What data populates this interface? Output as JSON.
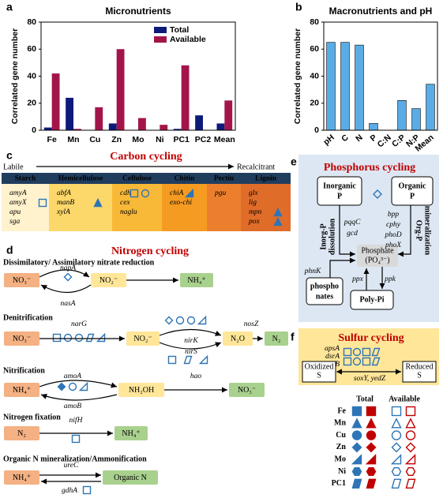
{
  "chart_data": [
    {
      "type": "bar",
      "panel": "a",
      "title": "Micronutrients",
      "ylabel": "Correlated gene number",
      "categories": [
        "Fe",
        "Mn",
        "Cu",
        "Zn",
        "Mo",
        "Ni",
        "PC1",
        "PC2",
        "Mean"
      ],
      "series": [
        {
          "name": "Total",
          "color": "#0d1a7a",
          "values": [
            2,
            24,
            0,
            5,
            0,
            0,
            1,
            11,
            5
          ]
        },
        {
          "name": "Available",
          "color": "#a3154a",
          "values": [
            42,
            1,
            17,
            60,
            9,
            4,
            48,
            0,
            22
          ]
        }
      ],
      "ylim": [
        0,
        80
      ],
      "yticks": [
        0,
        20,
        40,
        60,
        80
      ],
      "legend": "upper center"
    },
    {
      "type": "bar",
      "panel": "b",
      "title": "Macronutrients and pH",
      "ylabel": "Correlated gene number",
      "categories": [
        "pH",
        "C",
        "N",
        "P",
        "C:N",
        "C:P",
        "N:P",
        "Mean"
      ],
      "values": [
        65,
        65,
        63,
        5,
        0,
        22,
        16,
        34
      ],
      "color": "#5aace6",
      "ylim": [
        0,
        80
      ],
      "yticks": [
        0,
        20,
        40,
        60,
        80
      ]
    }
  ],
  "carbon": {
    "panel": "c",
    "title": "Carbon cycling",
    "labile": "Labile",
    "recalcitrant": "Recalcitrant",
    "columns": [
      {
        "name": "Starch",
        "genes": [
          "amyA",
          "amyX",
          "apu",
          "sga"
        ]
      },
      {
        "name": "Hemicellulose",
        "genes": [
          "abfA",
          "manB",
          "xylA"
        ]
      },
      {
        "name": "Cellulose",
        "genes": [
          "cdh",
          "cex",
          "naglu"
        ]
      },
      {
        "name": "Chitin",
        "genes": [
          "chiA",
          "exo-chi"
        ]
      },
      {
        "name": "Pectin",
        "genes": [
          "pgu"
        ]
      },
      {
        "name": "Lignin",
        "genes": [
          "glx",
          "lig",
          "mpn",
          "pox"
        ]
      }
    ]
  },
  "nitrogen": {
    "panel": "d",
    "title": "Nitrogen cycling",
    "processes": [
      {
        "name": "Dissimilatory/ Assimilatory nitrate reduction",
        "compounds": [
          "NO₃⁻",
          "NO₂⁻",
          "NH₄⁺"
        ],
        "genes": [
          "napA",
          "nasA"
        ]
      },
      {
        "name": "Denitrification",
        "compounds": [
          "NO₃⁻",
          "NO₂⁻",
          "N₂O",
          "N₂"
        ],
        "genes": [
          "narG",
          "nirK",
          "nirS",
          "nosZ"
        ]
      },
      {
        "name": "Nitrification",
        "compounds": [
          "NH₄⁺",
          "NH₂OH",
          "NO₃⁻"
        ],
        "genes": [
          "amoA",
          "amoB",
          "hao"
        ]
      },
      {
        "name": "Nitrogen fixation",
        "compounds": [
          "N₂",
          "NH₄⁺"
        ],
        "genes": [
          "nifH"
        ]
      },
      {
        "name": "Organic N mineralization/Ammonification",
        "compounds": [
          "NH₄⁺",
          "Organic N"
        ],
        "genes": [
          "ureC",
          "gdhA"
        ]
      }
    ]
  },
  "phosphorus": {
    "panel": "e",
    "title": "Phosphorus cycling",
    "inorganic": [
      "Inorganic",
      "P"
    ],
    "organic": [
      "Organic",
      "P"
    ],
    "inorg_process": [
      "Inorg-P",
      "dissolution"
    ],
    "org_process": [
      "Org-P",
      "mineralization"
    ],
    "phosphate": [
      "Phosphate",
      "(PO₄³⁻)"
    ],
    "phosphonates": [
      "phospho",
      "nates"
    ],
    "polyp": "Poly-Pi",
    "genes": [
      "pqqC",
      "gcd",
      "bpp",
      "cphy",
      "phoD",
      "phoX",
      "phnK",
      "ppx",
      "ppk"
    ]
  },
  "sulfur": {
    "panel": "f",
    "title": "Sulfur cycling",
    "genes": [
      "apsA",
      "dsrA",
      "dsrB"
    ],
    "oxidized": [
      "Oxidized",
      "S"
    ],
    "reduced": [
      "Reduced",
      "S"
    ],
    "reverse_genes": "soxY, yedZ"
  },
  "symbol_legend": {
    "headers": [
      "Total",
      "Available"
    ],
    "rows": [
      "Fe",
      "Mn",
      "Cu",
      "Zn",
      "Mo",
      "Ni",
      "PC1"
    ]
  }
}
